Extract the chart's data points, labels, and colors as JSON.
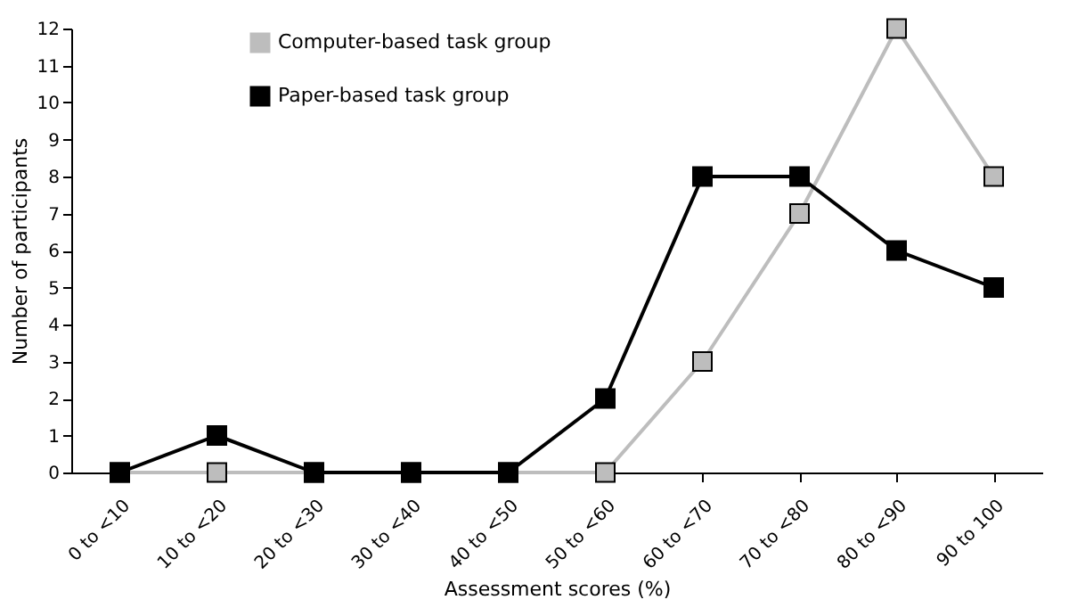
{
  "chart_data": {
    "type": "line",
    "xlabel": "Assessment scores (%)",
    "ylabel": "Number of participants",
    "categories": [
      "0 to <10",
      "10 to <20",
      "20 to <30",
      "30 to <40",
      "40 to <50",
      "50 to <60",
      "60 to <70",
      "70 to <80",
      "80 to <90",
      "90 to 100"
    ],
    "series": [
      {
        "name": "Computer-based task group",
        "color": "#bdbdbd",
        "values": [
          0,
          0,
          0,
          0,
          0,
          0,
          3,
          7,
          12,
          8
        ]
      },
      {
        "name": "Paper-based task group",
        "color": "#000000",
        "values": [
          0,
          1,
          0,
          0,
          0,
          2,
          8,
          8,
          6,
          5
        ]
      }
    ],
    "ylim": [
      0,
      12
    ],
    "yticks": [
      0,
      1,
      2,
      3,
      4,
      5,
      6,
      7,
      8,
      9,
      10,
      11,
      12
    ],
    "grid": false,
    "legend": "top left",
    "marker": "square",
    "line_style": "solid"
  }
}
